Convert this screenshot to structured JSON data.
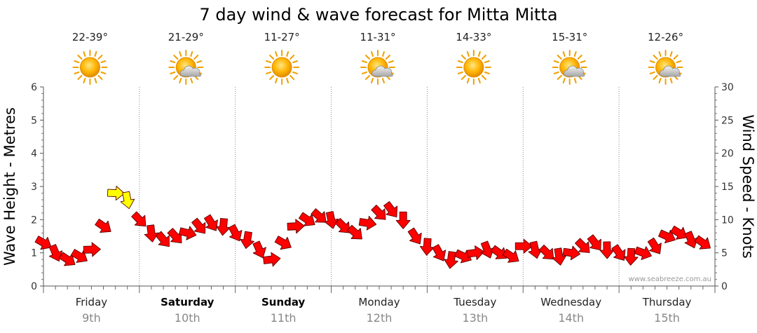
{
  "chart_data": {
    "type": "line",
    "title": "7 day wind & wave forecast for Mitta Mitta",
    "ylabel_left": "Wave Height - Metres",
    "ylabel_right": "Wind Speed - Knots",
    "ylim_left": [
      0,
      6
    ],
    "ylim_right": [
      0,
      30
    ],
    "yticks_left": [
      "0",
      "1",
      "2",
      "3",
      "4",
      "5",
      "6"
    ],
    "yticks_right": [
      "0",
      "5",
      "10",
      "15",
      "20",
      "25",
      "30"
    ],
    "grid": "vertical dotted day separators",
    "credit": "www.seabreeze.com.au",
    "days": [
      {
        "day": "Friday",
        "date": "9th",
        "temp": "22-39°",
        "weather": "sunny-icon",
        "bold": false
      },
      {
        "day": "Saturday",
        "date": "10th",
        "temp": "21-29°",
        "weather": "partly-cloudy-icon",
        "bold": true
      },
      {
        "day": "Sunday",
        "date": "11th",
        "temp": "11-27°",
        "weather": "sunny-icon",
        "bold": true
      },
      {
        "day": "Monday",
        "date": "12th",
        "temp": "11-31°",
        "weather": "partly-cloudy-icon",
        "bold": false
      },
      {
        "day": "Tuesday",
        "date": "13th",
        "temp": "14-33°",
        "weather": "sunny-icon",
        "bold": false
      },
      {
        "day": "Wednesday",
        "date": "14th",
        "temp": "15-31°",
        "weather": "partly-cloudy-icon",
        "bold": false
      },
      {
        "day": "Thursday",
        "date": "15th",
        "temp": "12-26°",
        "weather": "partly-cloudy-icon",
        "bold": false
      }
    ],
    "series": [
      {
        "name": "Wind Speed",
        "unit": "knots",
        "color": "#ff0000",
        "highlight_color": "#ffff00",
        "x_hours": [
          0,
          3,
          6,
          9,
          12,
          15,
          18,
          21,
          24,
          27,
          30,
          33,
          36,
          39,
          42,
          45,
          48,
          51,
          54,
          57,
          60,
          63,
          66,
          69,
          72,
          75,
          78,
          81,
          84,
          87,
          90,
          93,
          96,
          99,
          102,
          105,
          108,
          111,
          114,
          117,
          120,
          123,
          126,
          129,
          132,
          135,
          138,
          141,
          144,
          147,
          150,
          153,
          156,
          159,
          162,
          165
        ],
        "values": [
          6.5,
          5,
          4,
          4.5,
          5.5,
          9,
          14,
          13,
          10,
          8,
          7,
          7.5,
          8,
          9,
          9.5,
          9,
          8,
          7,
          5.5,
          4,
          6.5,
          9,
          10,
          10.5,
          10,
          9,
          8,
          9.5,
          11,
          11.5,
          10,
          7.5,
          6,
          5,
          4,
          4.5,
          5,
          5.5,
          5,
          4.5,
          6,
          5.5,
          5,
          4.5,
          5,
          6,
          6.5,
          5.5,
          5,
          4.5,
          5,
          6,
          7.5,
          8,
          7,
          6.5
        ],
        "highlighted_x_hours": [
          18,
          21
        ]
      }
    ]
  }
}
